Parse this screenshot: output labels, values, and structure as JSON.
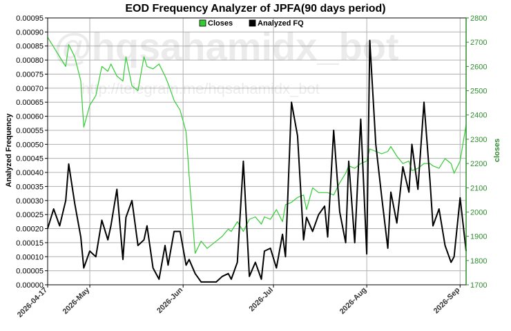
{
  "chart_data": {
    "type": "line",
    "title": "EOD Frequency Analyzer of JPFA(90 days period)",
    "ylabel": "Analyzed Frequency",
    "y2label": "closes",
    "ylim": [
      0,
      0.00095
    ],
    "y2lim": [
      1700,
      2800
    ],
    "yticks": [
      "0.00000",
      "0.00005",
      "0.00010",
      "0.00015",
      "0.00020",
      "0.00025",
      "0.00030",
      "0.00035",
      "0.00040",
      "0.00045",
      "0.00050",
      "0.00055",
      "0.00060",
      "0.00065",
      "0.00070",
      "0.00075",
      "0.00080",
      "0.00085",
      "0.00090",
      "0.00095"
    ],
    "y2ticks": [
      "1700",
      "1800",
      "1900",
      "2000",
      "2100",
      "2200",
      "2300",
      "2400",
      "2500",
      "2600",
      "2700",
      "2800"
    ],
    "xticks": [
      {
        "label": "2026-04-17",
        "x": "2026-04-17"
      },
      {
        "label": "2026-May",
        "x": "2026-05-01"
      },
      {
        "label": "2026-Jun",
        "x": "2026-06-01"
      },
      {
        "label": "2026-Jul",
        "x": "2026-07-01"
      },
      {
        "label": "2026-Aug",
        "x": "2026-08-01"
      },
      {
        "label": "2026-Sep",
        "x": "2026-09-01"
      }
    ],
    "xlim": [
      "2026-04-17",
      "2026-09-03"
    ],
    "grid": true,
    "legend_position": "top-center",
    "series": [
      {
        "name": "Closes",
        "axis": "right",
        "color": "#33cc33",
        "x": [
          "2026-04-17",
          "2026-04-19",
          "2026-04-21",
          "2026-04-23",
          "2026-04-24",
          "2026-04-26",
          "2026-04-28",
          "2026-04-29",
          "2026-05-01",
          "2026-05-03",
          "2026-05-05",
          "2026-05-07",
          "2026-05-08",
          "2026-05-10",
          "2026-05-12",
          "2026-05-13",
          "2026-05-15",
          "2026-05-17",
          "2026-05-19",
          "2026-05-20",
          "2026-05-22",
          "2026-05-24",
          "2026-05-26",
          "2026-05-27",
          "2026-05-29",
          "2026-05-31",
          "2026-06-02",
          "2026-06-03",
          "2026-06-05",
          "2026-06-07",
          "2026-06-09",
          "2026-06-10",
          "2026-06-12",
          "2026-06-14",
          "2026-06-16",
          "2026-06-17",
          "2026-06-19",
          "2026-06-21",
          "2026-06-23",
          "2026-06-25",
          "2026-06-27",
          "2026-06-28",
          "2026-06-30",
          "2026-07-02",
          "2026-07-04",
          "2026-07-05",
          "2026-07-07",
          "2026-07-09",
          "2026-07-11",
          "2026-07-12",
          "2026-07-14",
          "2026-07-16",
          "2026-07-18",
          "2026-07-19",
          "2026-07-21",
          "2026-07-23",
          "2026-07-25",
          "2026-07-26",
          "2026-07-28",
          "2026-07-30",
          "2026-08-01",
          "2026-08-02",
          "2026-08-04",
          "2026-08-06",
          "2026-08-08",
          "2026-08-09",
          "2026-08-11",
          "2026-08-13",
          "2026-08-15",
          "2026-08-16",
          "2026-08-18",
          "2026-08-20",
          "2026-08-22",
          "2026-08-23",
          "2026-08-25",
          "2026-08-27",
          "2026-08-29",
          "2026-08-30",
          "2026-09-01",
          "2026-09-03"
        ],
        "values": [
          2720,
          2680,
          2640,
          2600,
          2690,
          2640,
          2540,
          2350,
          2440,
          2480,
          2600,
          2580,
          2610,
          2560,
          2540,
          2640,
          2520,
          2500,
          2640,
          2600,
          2590,
          2610,
          2560,
          2530,
          2460,
          2420,
          2330,
          2150,
          1830,
          1880,
          1850,
          1860,
          1880,
          1900,
          1930,
          1920,
          1960,
          1920,
          1970,
          1980,
          1950,
          1980,
          1970,
          2010,
          1960,
          2030,
          2040,
          2060,
          2070,
          2010,
          2100,
          2080,
          2080,
          2080,
          2070,
          2120,
          2160,
          2190,
          2180,
          2200,
          2210,
          2260,
          2250,
          2240,
          2250,
          2270,
          2230,
          2200,
          2210,
          2170,
          2180,
          2200,
          2200,
          2190,
          2180,
          2220,
          2200,
          2160,
          2210,
          2360
        ]
      },
      {
        "name": "Analyzed FQ",
        "axis": "left",
        "color": "#000000",
        "x": [
          "2026-04-17",
          "2026-04-19",
          "2026-04-21",
          "2026-04-23",
          "2026-04-24",
          "2026-04-26",
          "2026-04-28",
          "2026-04-29",
          "2026-05-01",
          "2026-05-03",
          "2026-05-05",
          "2026-05-07",
          "2026-05-08",
          "2026-05-10",
          "2026-05-12",
          "2026-05-13",
          "2026-05-15",
          "2026-05-17",
          "2026-05-19",
          "2026-05-20",
          "2026-05-22",
          "2026-05-24",
          "2026-05-26",
          "2026-05-27",
          "2026-05-29",
          "2026-05-31",
          "2026-06-02",
          "2026-06-03",
          "2026-06-05",
          "2026-06-07",
          "2026-06-09",
          "2026-06-10",
          "2026-06-12",
          "2026-06-14",
          "2026-06-16",
          "2026-06-17",
          "2026-06-19",
          "2026-06-21",
          "2026-06-23",
          "2026-06-25",
          "2026-06-27",
          "2026-06-28",
          "2026-06-30",
          "2026-07-02",
          "2026-07-04",
          "2026-07-05",
          "2026-07-07",
          "2026-07-09",
          "2026-07-11",
          "2026-07-12",
          "2026-07-14",
          "2026-07-16",
          "2026-07-18",
          "2026-07-19",
          "2026-07-21",
          "2026-07-23",
          "2026-07-25",
          "2026-07-26",
          "2026-07-28",
          "2026-07-30",
          "2026-08-01",
          "2026-08-02",
          "2026-08-04",
          "2026-08-06",
          "2026-08-08",
          "2026-08-09",
          "2026-08-11",
          "2026-08-13",
          "2026-08-15",
          "2026-08-16",
          "2026-08-18",
          "2026-08-20",
          "2026-08-22",
          "2026-08-23",
          "2026-08-25",
          "2026-08-27",
          "2026-08-29",
          "2026-08-30",
          "2026-09-01",
          "2026-09-03"
        ],
        "values": [
          0.0002,
          0.00027,
          0.00021,
          0.0003,
          0.00043,
          0.00029,
          0.00017,
          6e-05,
          0.00012,
          0.0001,
          0.00023,
          0.00016,
          0.00021,
          0.00034,
          9e-05,
          0.00024,
          0.0003,
          0.00014,
          0.00016,
          0.00021,
          6e-05,
          2e-05,
          0.00014,
          7e-05,
          0.00019,
          0.00019,
          7e-05,
          9e-05,
          4e-05,
          1e-05,
          1e-05,
          1e-05,
          1e-05,
          3e-05,
          4e-05,
          2e-05,
          8e-05,
          0.00044,
          3e-05,
          8e-05,
          2e-05,
          0.00012,
          0.00013,
          6e-05,
          0.00018,
          0.0001,
          0.00065,
          0.00053,
          0.00016,
          0.00024,
          0.00019,
          0.00025,
          0.00028,
          0.00017,
          0.00055,
          0.00026,
          0.00015,
          0.00044,
          0.00015,
          0.00059,
          0.00011,
          0.00087,
          0.0005,
          0.00031,
          0.00013,
          0.00033,
          0.00022,
          0.00042,
          0.00033,
          0.0005,
          0.00034,
          0.00065,
          0.00037,
          0.00021,
          0.00027,
          0.00014,
          8e-05,
          0.0001,
          0.00031,
          0.00012
        ]
      }
    ]
  },
  "watermark": {
    "handle": "@hqsahamidx_bot",
    "url": "http://telegram.me/hqsahamidx_bot"
  },
  "colors": {
    "closes": "#33cc33",
    "fq": "#000000",
    "right_axis": "#2e8b2e",
    "grid": "#b0b0b0"
  }
}
